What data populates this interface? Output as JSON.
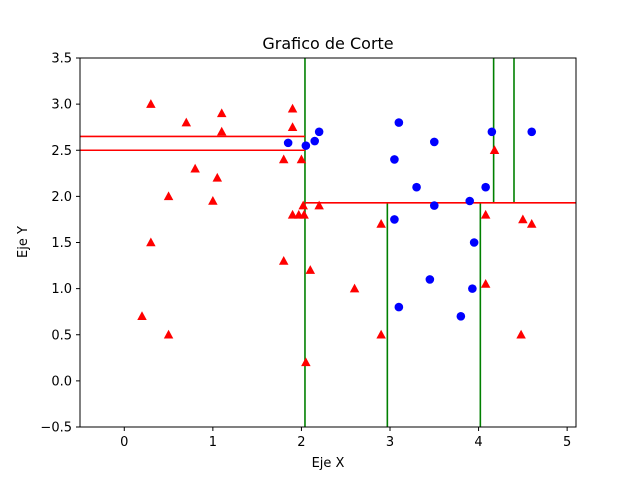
{
  "chart_data": {
    "type": "scatter",
    "title": "Grafico de Corte",
    "xlabel": "Eje X",
    "ylabel": "Eje Y",
    "xlim": [
      -0.5,
      5.1
    ],
    "ylim": [
      -0.5,
      3.5
    ],
    "xticks": [
      0,
      1,
      2,
      3,
      4,
      5
    ],
    "yticks": [
      -0.5,
      0.0,
      0.5,
      1.0,
      1.5,
      2.0,
      2.5,
      3.0,
      3.5
    ],
    "xtick_labels": [
      "0",
      "1",
      "2",
      "3",
      "4",
      "5"
    ],
    "ytick_labels": [
      "−0.5",
      "0.0",
      "0.5",
      "1.0",
      "1.5",
      "2.0",
      "2.5",
      "3.0",
      "3.5"
    ],
    "grid": false,
    "series": [
      {
        "name": "red-triangles",
        "marker": "triangle",
        "color": "#ff0000",
        "points": [
          [
            0.2,
            0.7
          ],
          [
            0.3,
            1.5
          ],
          [
            0.3,
            3.0
          ],
          [
            0.5,
            0.5
          ],
          [
            0.5,
            2.0
          ],
          [
            0.7,
            2.8
          ],
          [
            0.8,
            2.3
          ],
          [
            1.0,
            1.95
          ],
          [
            1.05,
            2.2
          ],
          [
            1.1,
            2.7
          ],
          [
            1.1,
            2.9
          ],
          [
            1.8,
            1.3
          ],
          [
            1.8,
            2.4
          ],
          [
            1.9,
            1.8
          ],
          [
            1.9,
            2.75
          ],
          [
            1.9,
            2.95
          ],
          [
            1.97,
            1.8
          ],
          [
            2.0,
            2.4
          ],
          [
            2.02,
            1.9
          ],
          [
            2.03,
            1.8
          ],
          [
            2.05,
            0.2
          ],
          [
            2.1,
            1.2
          ],
          [
            2.2,
            1.9
          ],
          [
            2.6,
            1.0
          ],
          [
            2.9,
            0.5
          ],
          [
            2.9,
            1.7
          ],
          [
            4.08,
            1.8
          ],
          [
            4.08,
            1.05
          ],
          [
            4.18,
            2.5
          ],
          [
            4.48,
            0.5
          ],
          [
            4.5,
            1.75
          ],
          [
            4.6,
            1.7
          ]
        ]
      },
      {
        "name": "blue-circles",
        "marker": "circle",
        "color": "#0000ff",
        "points": [
          [
            1.85,
            2.58
          ],
          [
            2.05,
            2.55
          ],
          [
            2.15,
            2.6
          ],
          [
            2.2,
            2.7
          ],
          [
            3.05,
            2.4
          ],
          [
            3.05,
            1.75
          ],
          [
            3.1,
            2.8
          ],
          [
            3.1,
            0.8
          ],
          [
            3.3,
            2.1
          ],
          [
            3.45,
            1.1
          ],
          [
            3.5,
            2.59
          ],
          [
            3.5,
            1.9
          ],
          [
            3.8,
            0.7
          ],
          [
            3.9,
            1.95
          ],
          [
            3.93,
            1.0
          ],
          [
            3.95,
            1.5
          ],
          [
            4.08,
            2.1
          ],
          [
            4.15,
            2.7
          ],
          [
            4.6,
            2.7
          ]
        ]
      }
    ],
    "cut_lines": {
      "vertical": {
        "color": "#008000",
        "lines": [
          {
            "x": 2.04,
            "y_from": -0.5,
            "y_to": 3.5
          },
          {
            "x": 2.97,
            "y_from": -0.5,
            "y_to": 1.93
          },
          {
            "x": 4.02,
            "y_from": -0.5,
            "y_to": 1.93
          },
          {
            "x": 4.17,
            "y_from": 1.93,
            "y_to": 3.5
          },
          {
            "x": 4.4,
            "y_from": 1.93,
            "y_to": 3.5
          }
        ]
      },
      "horizontal": {
        "color": "#ff0000",
        "lines": [
          {
            "y": 2.5,
            "x_from": -0.5,
            "x_to": 2.04
          },
          {
            "y": 2.65,
            "x_from": -0.5,
            "x_to": 2.04
          },
          {
            "y": 1.93,
            "x_from": 2.04,
            "x_to": 5.1
          }
        ]
      }
    }
  }
}
